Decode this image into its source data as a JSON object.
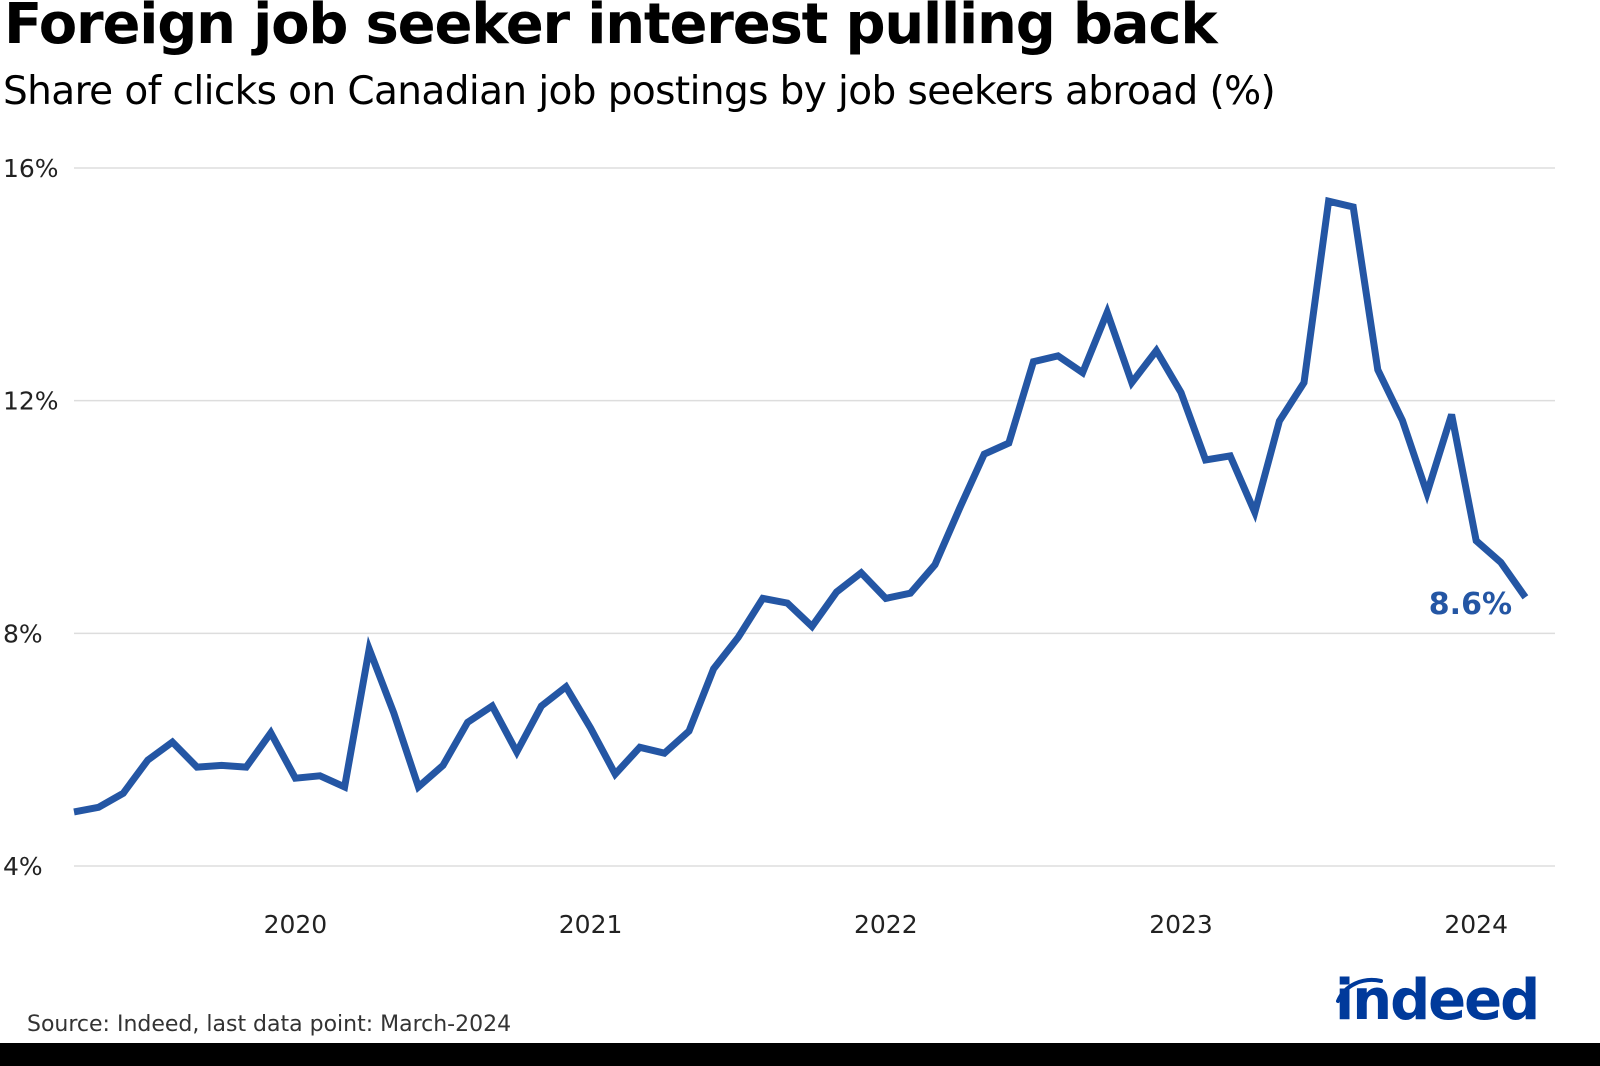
{
  "header": {
    "title": "Foreign job seeker interest pulling back",
    "subtitle": "Share of clicks on Canadian job postings by job seekers abroad (%)"
  },
  "footer": {
    "source": "Source: Indeed, last data point: March-2024",
    "logo_text": "indeed"
  },
  "colors": {
    "line": "#2456A4",
    "grid": "#DDDDDD",
    "logo": "#003A9B",
    "bottom_bar": "#000000"
  },
  "chart_data": {
    "type": "line",
    "title": "Foreign job seeker interest pulling back",
    "subtitle": "Share of clicks on Canadian job postings by job seekers abroad (%)",
    "xlabel": "",
    "ylabel": "",
    "ylim": [
      4,
      16
    ],
    "yticks": [
      4,
      8,
      12,
      16
    ],
    "ytick_labels": [
      "4%",
      "8%",
      "12%",
      "16%"
    ],
    "xtick_labels": [
      "2020",
      "2021",
      "2022",
      "2023",
      "2024"
    ],
    "xtick_indices": [
      9,
      21,
      33,
      45,
      57
    ],
    "grid": "horizontal",
    "legend": "none",
    "annotation": {
      "text": "8.6%",
      "at_index": 59
    },
    "x": [
      "2019-04",
      "2019-05",
      "2019-06",
      "2019-07",
      "2019-08",
      "2019-09",
      "2019-10",
      "2019-11",
      "2019-12",
      "2020-01",
      "2020-02",
      "2020-03",
      "2020-04",
      "2020-05",
      "2020-06",
      "2020-07",
      "2020-08",
      "2020-09",
      "2020-10",
      "2020-11",
      "2020-12",
      "2021-01",
      "2021-02",
      "2021-03",
      "2021-04",
      "2021-05",
      "2021-06",
      "2021-07",
      "2021-08",
      "2021-09",
      "2021-10",
      "2021-11",
      "2021-12",
      "2022-01",
      "2022-02",
      "2022-03",
      "2022-04",
      "2022-05",
      "2022-06",
      "2022-07",
      "2022-08",
      "2022-09",
      "2022-10",
      "2022-11",
      "2022-12",
      "2023-01",
      "2023-02",
      "2023-03",
      "2023-04",
      "2023-05",
      "2023-06",
      "2023-07",
      "2023-08",
      "2023-09",
      "2023-10",
      "2023-11",
      "2023-12",
      "2024-01",
      "2024-02",
      "2024-03"
    ],
    "series": [
      {
        "name": "Share of clicks by job seekers abroad (%)",
        "values": [
          4.93,
          5.01,
          5.25,
          5.82,
          6.13,
          5.7,
          5.73,
          5.7,
          6.29,
          5.51,
          5.55,
          5.36,
          7.73,
          6.63,
          5.36,
          5.73,
          6.47,
          6.75,
          5.96,
          6.75,
          7.08,
          6.37,
          5.58,
          6.04,
          5.94,
          6.32,
          7.39,
          7.93,
          8.6,
          8.52,
          8.12,
          8.71,
          9.04,
          8.6,
          8.69,
          9.18,
          10.15,
          11.08,
          11.27,
          12.67,
          12.77,
          12.48,
          13.52,
          12.31,
          12.86,
          12.14,
          10.98,
          11.05,
          10.08,
          11.65,
          12.31,
          15.43,
          15.33,
          12.53,
          11.66,
          10.41,
          11.76,
          9.59,
          9.22,
          8.62
        ]
      }
    ]
  }
}
